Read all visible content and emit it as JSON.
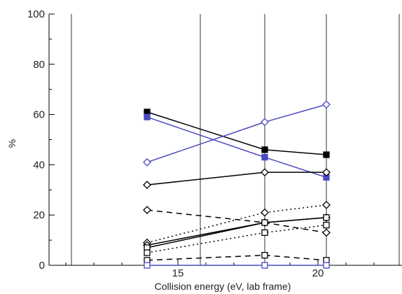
{
  "chart_data": {
    "type": "line",
    "xlabel": "Collision energy (eV, lab frame)",
    "ylabel": "%",
    "xlim": [
      10.4,
      23
    ],
    "ylim": [
      0,
      100
    ],
    "x_ticks": [
      15,
      20
    ],
    "y_ticks": [
      0,
      20,
      40,
      60,
      80,
      100
    ],
    "vertical_gridlines_x": [
      11.2,
      15.8,
      18.1,
      20.3,
      22.9
    ],
    "series": [
      {
        "style": "solid",
        "color": "#000000",
        "marker": "square-filled",
        "x": [
          13.9,
          18.1,
          20.3
        ],
        "y": [
          61,
          46,
          44
        ]
      },
      {
        "style": "solid",
        "color": "#4a4ac0",
        "marker": "square-filled",
        "x": [
          13.9,
          18.1,
          20.3
        ],
        "y": [
          59,
          43,
          35
        ]
      },
      {
        "style": "solid",
        "color": "#4a4ac0",
        "marker": "diamond-open",
        "x": [
          13.9,
          18.1,
          20.3
        ],
        "y": [
          41,
          57,
          64
        ]
      },
      {
        "style": "solid",
        "color": "#000000",
        "marker": "diamond-open",
        "x": [
          13.9,
          18.1,
          20.3
        ],
        "y": [
          32,
          37,
          37
        ]
      },
      {
        "style": "dashed",
        "color": "#000000",
        "marker": "diamond-open",
        "x": [
          13.9,
          18.1,
          20.3
        ],
        "y": [
          22,
          17,
          13
        ]
      },
      {
        "style": "dotted",
        "color": "#000000",
        "marker": "diamond-open",
        "x": [
          13.9,
          18.1,
          20.3
        ],
        "y": [
          9,
          21,
          24
        ]
      },
      {
        "style": "solid",
        "color": "#000000",
        "marker": "diamond-open",
        "x": [
          13.9,
          18.1,
          20.3
        ],
        "y": [
          8,
          17,
          19
        ]
      },
      {
        "style": "solid",
        "color": "#000000",
        "marker": "square-open",
        "x": [
          13.9,
          18.1,
          20.3
        ],
        "y": [
          7,
          17,
          19
        ]
      },
      {
        "style": "dotted",
        "color": "#000000",
        "marker": "square-open",
        "x": [
          13.9,
          18.1,
          20.3
        ],
        "y": [
          5,
          13,
          16
        ]
      },
      {
        "style": "dashed",
        "color": "#000000",
        "marker": "square-open",
        "x": [
          13.9,
          18.1,
          20.3
        ],
        "y": [
          2,
          4,
          2
        ]
      },
      {
        "style": "solid",
        "color": "#4a4ac0",
        "marker": "square-open",
        "x": [
          13.9,
          18.1,
          20.3
        ],
        "y": [
          0,
          0,
          0
        ]
      }
    ]
  }
}
